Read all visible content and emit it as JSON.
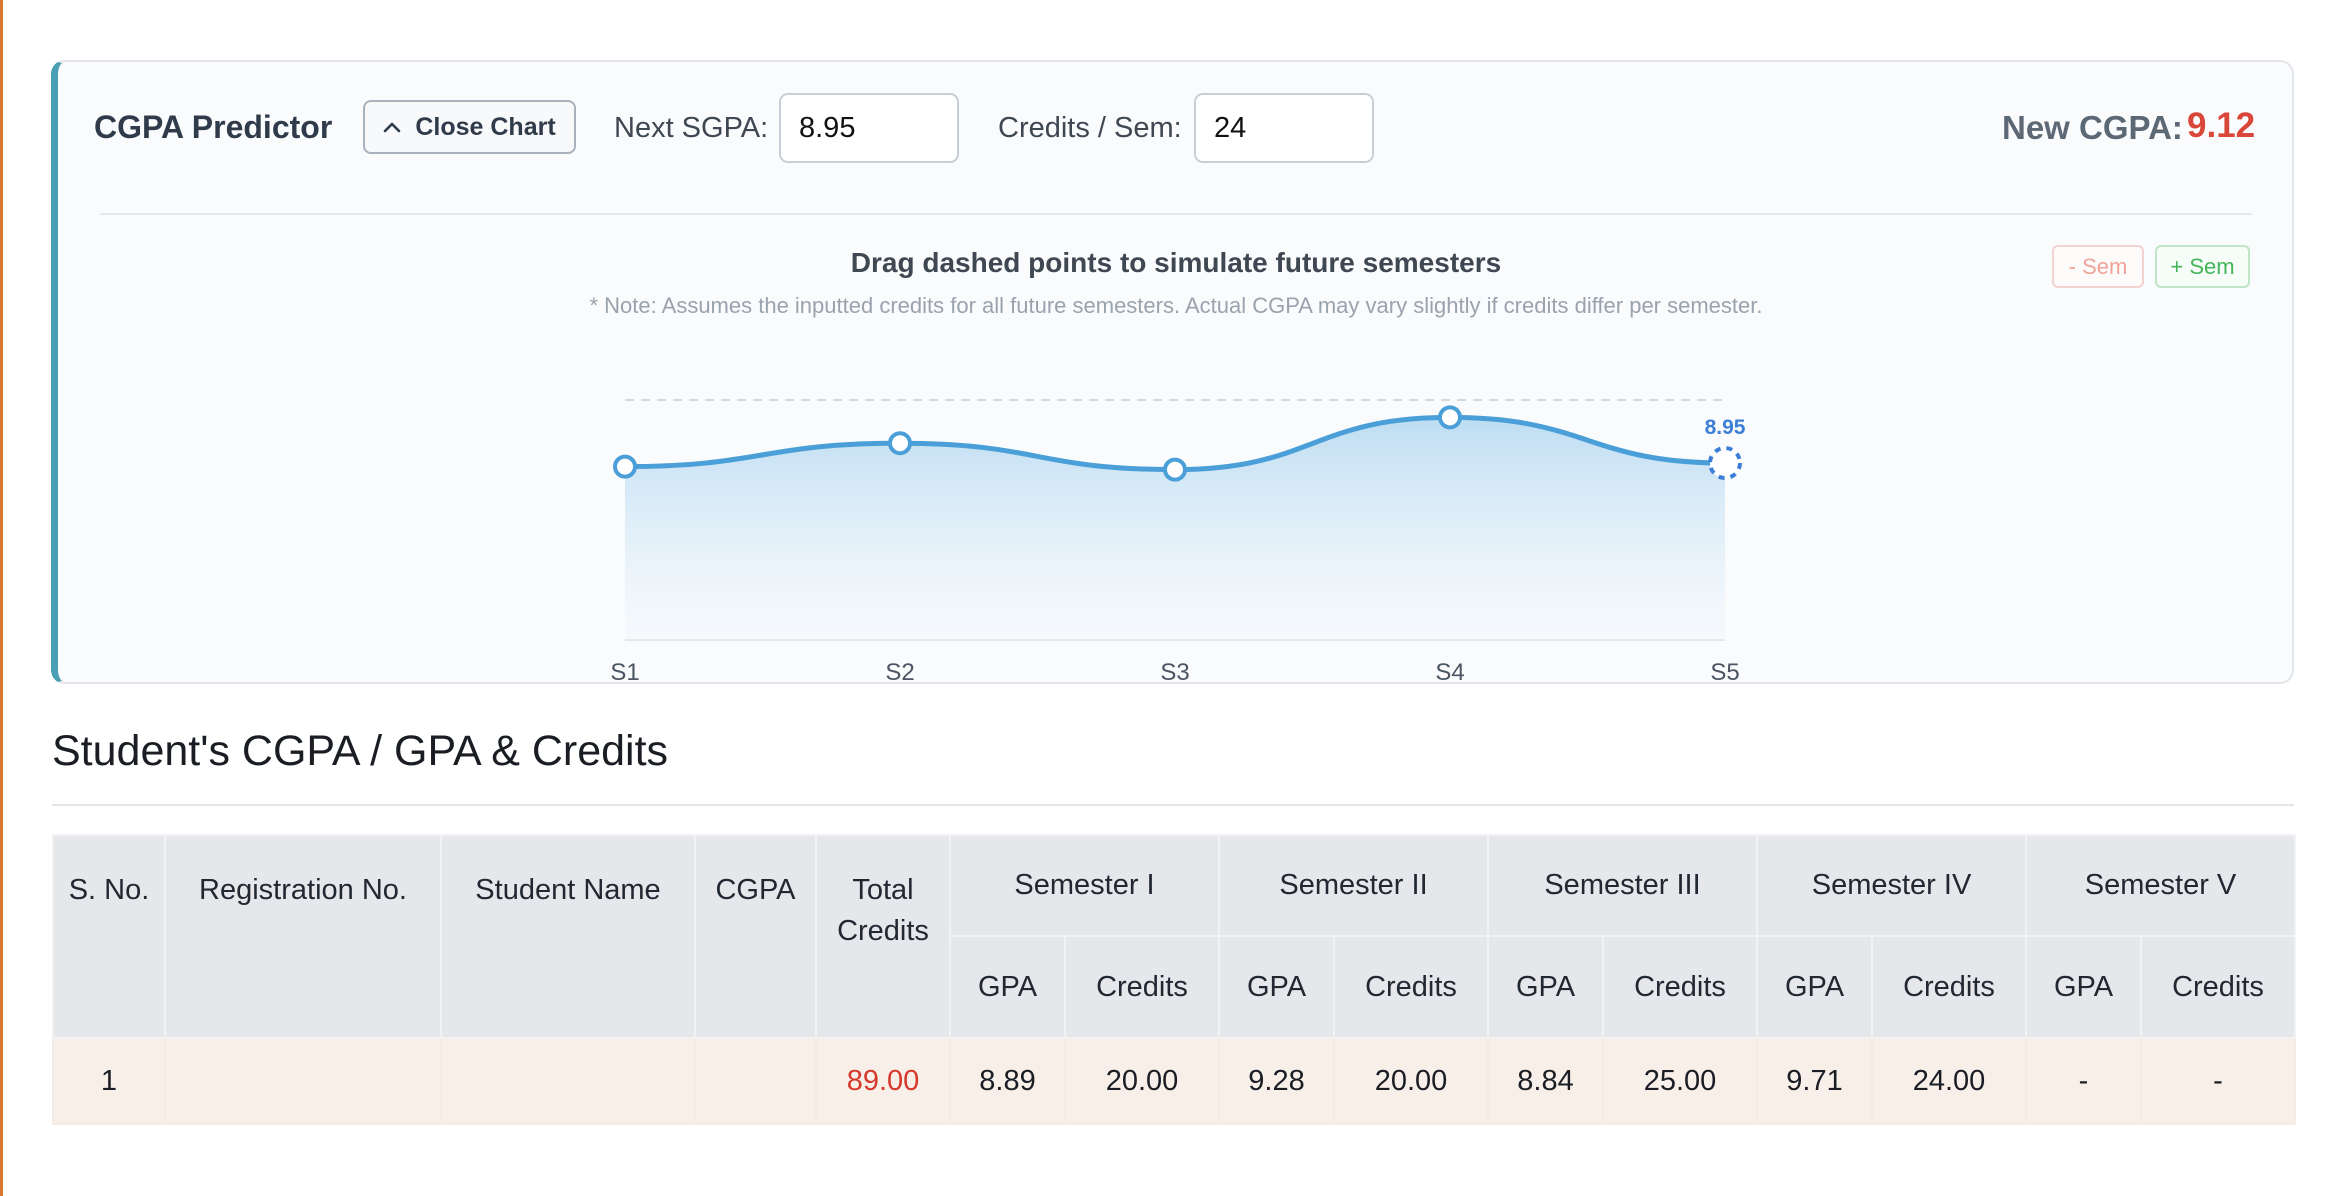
{
  "predictor": {
    "title": "CGPA Predictor",
    "close_chart_label": "Close Chart",
    "next_sgpa_label": "Next SGPA:",
    "next_sgpa_value": "8.95",
    "credits_label": "Credits / Sem:",
    "credits_value": "24",
    "new_cgpa_label": "New CGPA:",
    "new_cgpa_value": "9.12",
    "chart_heading": "Drag dashed points to simulate future semesters",
    "chart_note": "* Note: Assumes the inputted credits for all future semesters. Actual CGPA may vary slightly if credits differ per semester.",
    "minus_sem_label": "- Sem",
    "plus_sem_label": "+ Sem",
    "accent_color": "#4a9fb5",
    "value_color": "#d9473b"
  },
  "chart_data": {
    "type": "area",
    "categories": [
      "S1",
      "S2",
      "S3",
      "S4",
      "S5"
    ],
    "values": [
      8.89,
      9.28,
      8.84,
      9.71,
      8.95
    ],
    "predicted_index": 4,
    "predicted_label": "8.95",
    "ylim": [
      6.0,
      10.0
    ],
    "reference_line": 10.0,
    "line_color": "#4a9fd8",
    "predicted_color": "#3d7fd6"
  },
  "table": {
    "section_title": "Student's CGPA / GPA & Credits",
    "headers": {
      "sno": "S. No.",
      "reg": "Registration No.",
      "name": "Student Name",
      "cgpa": "CGPA",
      "total_credits": "Total Credits",
      "semesters": [
        "Semester I",
        "Semester II",
        "Semester III",
        "Semester IV",
        "Semester V"
      ],
      "gpa": "GPA",
      "credits": "Credits"
    },
    "row": {
      "sno": "1",
      "reg": "",
      "name": "",
      "cgpa": "",
      "total_credits": "89.00",
      "cells": [
        "8.89",
        "20.00",
        "9.28",
        "20.00",
        "8.84",
        "25.00",
        "9.71",
        "24.00",
        "-",
        "-"
      ]
    }
  }
}
